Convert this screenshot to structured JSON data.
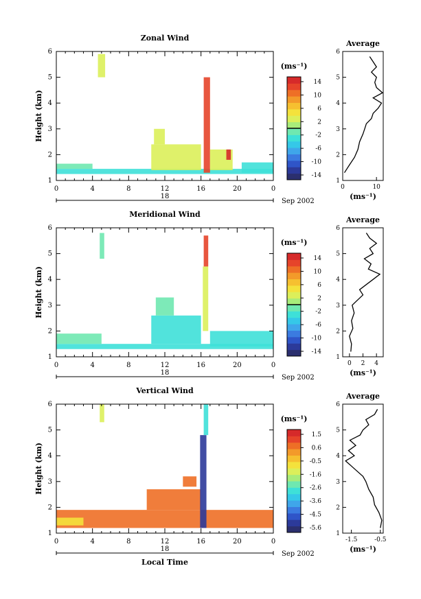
{
  "chart_data": [
    {
      "type": "heatmap",
      "title": "Zonal Wind",
      "ylabel": "Height (km)",
      "xlabel": "",
      "x_ticks": [
        "0",
        "4",
        "8",
        "12",
        "16",
        "20",
        "0"
      ],
      "y_ticks": [
        "1",
        "2",
        "3",
        "4",
        "5",
        "6"
      ],
      "xlim": [
        0,
        24
      ],
      "ylim": [
        1,
        6
      ],
      "date_bar_label": "18",
      "date_label": "Sep 2002",
      "colorbar": {
        "unit": "(ms⁻¹)",
        "ticks": [
          "14",
          "10",
          "6",
          "2",
          "-2",
          "-6",
          "-10",
          "-14"
        ],
        "min": -16,
        "max": 16,
        "zero_line": 0
      },
      "fields": [
        {
          "x": [
            0,
            24
          ],
          "y": [
            1.25,
            1.45
          ],
          "v": -3
        },
        {
          "x": [
            0,
            4
          ],
          "y": [
            1.45,
            1.65
          ],
          "v": -1
        },
        {
          "x": [
            4.6,
            5.4
          ],
          "y": [
            5.0,
            5.9
          ],
          "v": 3
        },
        {
          "x": [
            10.5,
            16
          ],
          "y": [
            1.4,
            2.4
          ],
          "v": 2
        },
        {
          "x": [
            10.8,
            12
          ],
          "y": [
            2.4,
            3.0
          ],
          "v": 3
        },
        {
          "x": [
            16.3,
            17.0
          ],
          "y": [
            1.3,
            5.0
          ],
          "v": 13
        },
        {
          "x": [
            17.0,
            19.5
          ],
          "y": [
            1.4,
            2.2
          ],
          "v": 2
        },
        {
          "x": [
            18.8,
            19.3
          ],
          "y": [
            1.8,
            2.2
          ],
          "v": 14
        },
        {
          "x": [
            20.5,
            24
          ],
          "y": [
            1.3,
            1.7
          ],
          "v": -3
        }
      ],
      "profile": {
        "title": "Average",
        "xlabel": "(ms⁻¹)",
        "x_ticks": [
          "0",
          "10"
        ],
        "xlim": [
          0,
          12
        ],
        "height": [
          1.3,
          1.6,
          1.9,
          2.2,
          2.5,
          2.8,
          3.0,
          3.2,
          3.4,
          3.6,
          3.8,
          4.0,
          4.2,
          4.4,
          4.6,
          4.8,
          5.0,
          5.2,
          5.4,
          5.6,
          5.8
        ],
        "value": [
          0.5,
          2.0,
          3.5,
          4.5,
          5.0,
          6.0,
          6.5,
          7.0,
          8.5,
          9.0,
          10.5,
          11.5,
          9.0,
          11.8,
          10.0,
          9.5,
          10.0,
          8.5,
          10.0,
          9.0,
          8.0
        ]
      }
    },
    {
      "type": "heatmap",
      "title": "Meridional Wind",
      "ylabel": "Height (km)",
      "xlabel": "",
      "x_ticks": [
        "0",
        "4",
        "8",
        "12",
        "16",
        "20",
        "0"
      ],
      "y_ticks": [
        "1",
        "2",
        "3",
        "4",
        "5",
        "6"
      ],
      "xlim": [
        0,
        24
      ],
      "ylim": [
        1,
        6
      ],
      "date_bar_label": "18",
      "date_label": "Sep 2002",
      "colorbar": {
        "unit": "(ms⁻¹)",
        "ticks": [
          "14",
          "10",
          "6",
          "2",
          "-2",
          "-6",
          "-10",
          "-14"
        ],
        "min": -16,
        "max": 16,
        "zero_line": 0
      },
      "fields": [
        {
          "x": [
            0,
            24
          ],
          "y": [
            1.3,
            1.5
          ],
          "v": -3
        },
        {
          "x": [
            0,
            5
          ],
          "y": [
            1.5,
            1.9
          ],
          "v": -2
        },
        {
          "x": [
            10.5,
            16
          ],
          "y": [
            1.5,
            2.6
          ],
          "v": -3
        },
        {
          "x": [
            11,
            13
          ],
          "y": [
            2.6,
            3.3
          ],
          "v": -2
        },
        {
          "x": [
            4.8,
            5.3
          ],
          "y": [
            4.8,
            5.8
          ],
          "v": -1
        },
        {
          "x": [
            16.2,
            16.8
          ],
          "y": [
            2.0,
            4.5
          ],
          "v": 3
        },
        {
          "x": [
            16.3,
            16.8
          ],
          "y": [
            4.5,
            5.7
          ],
          "v": 12
        },
        {
          "x": [
            17.0,
            24
          ],
          "y": [
            1.4,
            2.0
          ],
          "v": -3
        }
      ],
      "profile": {
        "title": "Average",
        "xlabel": "(ms⁻¹)",
        "x_ticks": [
          "0",
          "2",
          "4"
        ],
        "xlim": [
          -1,
          5
        ],
        "height": [
          1.2,
          1.5,
          1.8,
          2.1,
          2.4,
          2.7,
          3.0,
          3.2,
          3.4,
          3.6,
          3.8,
          4.0,
          4.2,
          4.4,
          4.6,
          4.8,
          5.0,
          5.2,
          5.4,
          5.6,
          5.8
        ],
        "value": [
          0.2,
          0.3,
          0.0,
          0.5,
          0.3,
          0.7,
          0.4,
          1.2,
          2.0,
          1.5,
          2.5,
          3.5,
          4.5,
          2.8,
          3.2,
          2.2,
          3.5,
          3.0,
          4.0,
          3.0,
          2.5
        ]
      }
    },
    {
      "type": "heatmap",
      "title": "Vertical Wind",
      "ylabel": "Height (km)",
      "xlabel": "Local Time",
      "x_ticks": [
        "0",
        "4",
        "8",
        "12",
        "16",
        "20",
        "0"
      ],
      "y_ticks": [
        "1",
        "2",
        "3",
        "4",
        "5",
        "6"
      ],
      "xlim": [
        0,
        24
      ],
      "ylim": [
        1,
        6
      ],
      "date_bar_label": "18",
      "date_label": "Sep 2002",
      "colorbar": {
        "unit": "(ms⁻¹)",
        "ticks": [
          "1.5",
          "0.6",
          "-0.5",
          "-1.6",
          "-2.6",
          "-3.6",
          "-4.5",
          "-5.6"
        ],
        "min": -6,
        "max": 2,
        "zero_line": null
      },
      "fields": [
        {
          "x": [
            0,
            24
          ],
          "y": [
            1.2,
            1.9
          ],
          "v": 0.6
        },
        {
          "x": [
            0,
            3
          ],
          "y": [
            1.3,
            1.6
          ],
          "v": -1.0
        },
        {
          "x": [
            10,
            16
          ],
          "y": [
            1.9,
            2.7
          ],
          "v": 0.9
        },
        {
          "x": [
            4.8,
            5.3
          ],
          "y": [
            5.3,
            6.0
          ],
          "v": -1.2
        },
        {
          "x": [
            15.9,
            16.6
          ],
          "y": [
            1.2,
            4.8
          ],
          "v": -5.4
        },
        {
          "x": [
            16.3,
            16.8
          ],
          "y": [
            4.8,
            6.0
          ],
          "v": -3.0
        },
        {
          "x": [
            14.0,
            15.5
          ],
          "y": [
            2.8,
            3.2
          ],
          "v": 0.6
        }
      ],
      "profile": {
        "title": "Average",
        "xlabel": "(ms⁻¹)",
        "x_ticks": [
          "-1.5",
          "-0.5"
        ],
        "xlim": [
          -1.8,
          -0.4
        ],
        "height": [
          1.2,
          1.5,
          1.8,
          2.1,
          2.4,
          2.7,
          3.0,
          3.2,
          3.4,
          3.6,
          3.8,
          4.0,
          4.2,
          4.4,
          4.6,
          4.8,
          5.0,
          5.2,
          5.4,
          5.6,
          5.8
        ],
        "value": [
          -0.5,
          -0.45,
          -0.55,
          -0.7,
          -0.75,
          -0.9,
          -1.0,
          -1.1,
          -1.3,
          -1.5,
          -1.7,
          -1.4,
          -1.6,
          -1.35,
          -1.55,
          -1.2,
          -1.1,
          -0.9,
          -1.0,
          -0.7,
          -0.6
        ]
      }
    }
  ]
}
